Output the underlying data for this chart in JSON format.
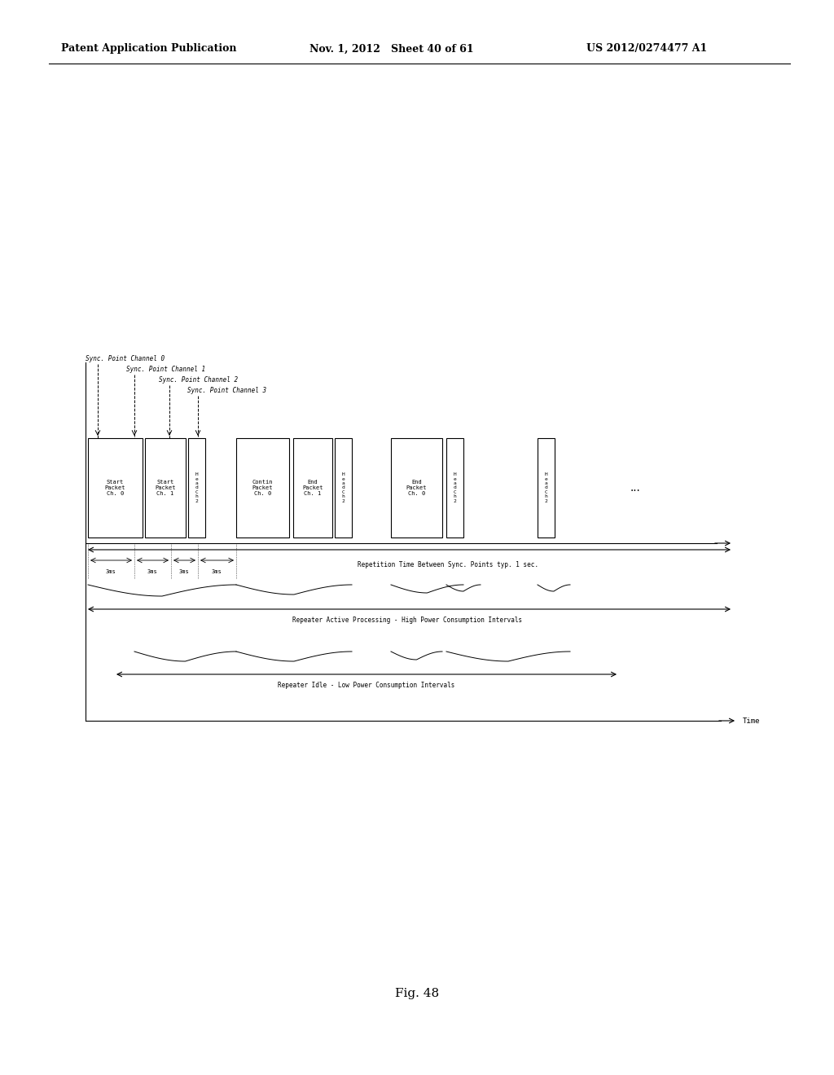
{
  "bg_color": "#ffffff",
  "header_left": "Patent Application Publication",
  "header_mid": "Nov. 1, 2012   Sheet 40 of 61",
  "header_right": "US 2012/0274477 A1",
  "fig_label": "Fig. 48",
  "sync_labels": [
    "Sync. Point Channel 0",
    "Sync. Point Channel 1",
    "Sync. Point Channel 2",
    "Sync. Point Channel 3"
  ],
  "rep_time_label": "Repetition Time Between Sync. Points typ. 1 sec.",
  "active_label": "Repeater Active Processing - High Power Consumption Intervals",
  "idle_label": "Repeater Idle - Low Power Consumption Intervals",
  "time_label": "Time"
}
